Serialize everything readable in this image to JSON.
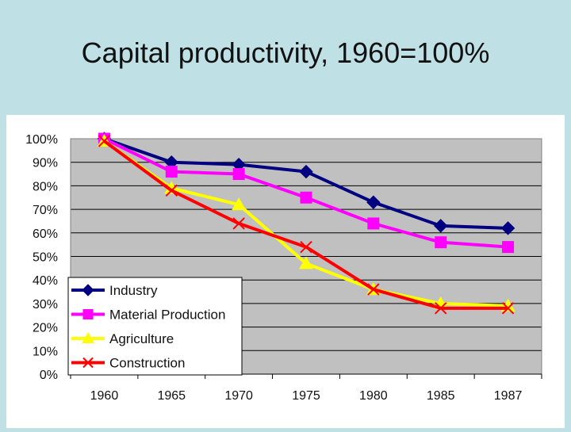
{
  "slide": {
    "title": "Capital productivity,  1960=100%"
  },
  "chart_data": {
    "type": "line",
    "title": "",
    "xlabel": "",
    "ylabel": "",
    "categories": [
      "1960",
      "1965",
      "1970",
      "1975",
      "1980",
      "1985",
      "1987"
    ],
    "ylim": [
      0,
      100
    ],
    "y_ticks": [
      "0%",
      "10%",
      "20%",
      "30%",
      "40%",
      "50%",
      "60%",
      "70%",
      "80%",
      "90%",
      "100%"
    ],
    "grid": true,
    "legend_position": "bottom-left",
    "plot_background": "#c0c0c0",
    "series": [
      {
        "name": "Industry",
        "color": "#000080",
        "marker": "diamond",
        "values": [
          100,
          90,
          89,
          86,
          73,
          63,
          62
        ]
      },
      {
        "name": "Material Production",
        "color": "#ff00ff",
        "marker": "square",
        "values": [
          100,
          86,
          85,
          75,
          64,
          56,
          54
        ]
      },
      {
        "name": "Agriculture",
        "color": "#ffff00",
        "marker": "triangle",
        "values": [
          99,
          79,
          72,
          47,
          36,
          30,
          29
        ]
      },
      {
        "name": "Construction",
        "color": "#ff0000",
        "marker": "x",
        "values": [
          99,
          78,
          64,
          54,
          36,
          28,
          28
        ]
      }
    ]
  }
}
